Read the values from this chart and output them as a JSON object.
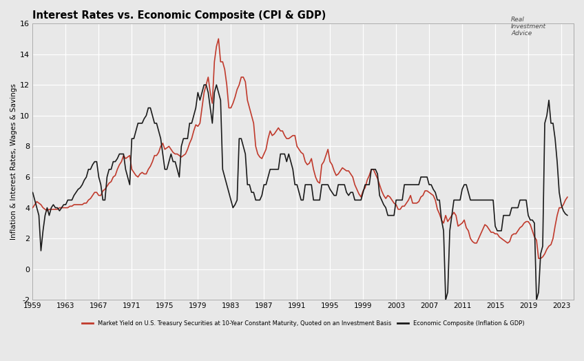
{
  "title": "Interest Rates vs. Economic Composite (CPI & GDP)",
  "ylabel": "Inflation & Interest Rates, Wages & Savings",
  "ylim": [
    -2,
    16
  ],
  "yticks": [
    -2,
    0,
    2,
    4,
    6,
    8,
    10,
    12,
    14,
    16
  ],
  "xticks": [
    1959,
    1963,
    1967,
    1971,
    1975,
    1979,
    1983,
    1987,
    1991,
    1995,
    1999,
    2003,
    2007,
    2011,
    2015,
    2019,
    2023
  ],
  "xlim": [
    1959,
    2024.5
  ],
  "treasury_color": "#c0392b",
  "composite_color": "#1a1a1a",
  "background_color": "#e8e8e8",
  "grid_color": "#ffffff",
  "legend_treasury": "Market Yield on U.S. Treasury Securities at 10-Year Constant Maturity, Quoted on an Investment Basis",
  "legend_composite": "Economic Composite (Inflation & GDP)",
  "treasury_yield": {
    "t": [
      1959.0,
      1959.25,
      1959.5,
      1959.75,
      1960.0,
      1960.25,
      1960.5,
      1960.75,
      1961.0,
      1961.25,
      1961.5,
      1961.75,
      1962.0,
      1962.25,
      1962.5,
      1962.75,
      1963.0,
      1963.25,
      1963.5,
      1963.75,
      1964.0,
      1964.25,
      1964.5,
      1964.75,
      1965.0,
      1965.25,
      1965.5,
      1965.75,
      1966.0,
      1966.25,
      1966.5,
      1966.75,
      1967.0,
      1967.25,
      1967.5,
      1967.75,
      1968.0,
      1968.25,
      1968.5,
      1968.75,
      1969.0,
      1969.25,
      1969.5,
      1969.75,
      1970.0,
      1970.25,
      1970.5,
      1970.75,
      1971.0,
      1971.25,
      1971.5,
      1971.75,
      1972.0,
      1972.25,
      1972.5,
      1972.75,
      1973.0,
      1973.25,
      1973.5,
      1973.75,
      1974.0,
      1974.25,
      1974.5,
      1974.75,
      1975.0,
      1975.25,
      1975.5,
      1975.75,
      1976.0,
      1976.25,
      1976.5,
      1976.75,
      1977.0,
      1977.25,
      1977.5,
      1977.75,
      1978.0,
      1978.25,
      1978.5,
      1978.75,
      1979.0,
      1979.25,
      1979.5,
      1979.75,
      1980.0,
      1980.25,
      1980.5,
      1980.75,
      1981.0,
      1981.25,
      1981.5,
      1981.75,
      1982.0,
      1982.25,
      1982.5,
      1982.75,
      1983.0,
      1983.25,
      1983.5,
      1983.75,
      1984.0,
      1984.25,
      1984.5,
      1984.75,
      1985.0,
      1985.25,
      1985.5,
      1985.75,
      1986.0,
      1986.25,
      1986.5,
      1986.75,
      1987.0,
      1987.25,
      1987.5,
      1987.75,
      1988.0,
      1988.25,
      1988.5,
      1988.75,
      1989.0,
      1989.25,
      1989.5,
      1989.75,
      1990.0,
      1990.25,
      1990.5,
      1990.75,
      1991.0,
      1991.25,
      1991.5,
      1991.75,
      1992.0,
      1992.25,
      1992.5,
      1992.75,
      1993.0,
      1993.25,
      1993.5,
      1993.75,
      1994.0,
      1994.25,
      1994.5,
      1994.75,
      1995.0,
      1995.25,
      1995.5,
      1995.75,
      1996.0,
      1996.25,
      1996.5,
      1996.75,
      1997.0,
      1997.25,
      1997.5,
      1997.75,
      1998.0,
      1998.25,
      1998.5,
      1998.75,
      1999.0,
      1999.25,
      1999.5,
      1999.75,
      2000.0,
      2000.25,
      2000.5,
      2000.75,
      2001.0,
      2001.25,
      2001.5,
      2001.75,
      2002.0,
      2002.25,
      2002.5,
      2002.75,
      2003.0,
      2003.25,
      2003.5,
      2003.75,
      2004.0,
      2004.25,
      2004.5,
      2004.75,
      2005.0,
      2005.25,
      2005.5,
      2005.75,
      2006.0,
      2006.25,
      2006.5,
      2006.75,
      2007.0,
      2007.25,
      2007.5,
      2007.75,
      2008.0,
      2008.25,
      2008.5,
      2008.75,
      2009.0,
      2009.25,
      2009.5,
      2009.75,
      2010.0,
      2010.25,
      2010.5,
      2010.75,
      2011.0,
      2011.25,
      2011.5,
      2011.75,
      2012.0,
      2012.25,
      2012.5,
      2012.75,
      2013.0,
      2013.25,
      2013.5,
      2013.75,
      2014.0,
      2014.25,
      2014.5,
      2014.75,
      2015.0,
      2015.25,
      2015.5,
      2015.75,
      2016.0,
      2016.25,
      2016.5,
      2016.75,
      2017.0,
      2017.25,
      2017.5,
      2017.75,
      2018.0,
      2018.25,
      2018.5,
      2018.75,
      2019.0,
      2019.25,
      2019.5,
      2019.75,
      2020.0,
      2020.25,
      2020.5,
      2020.75,
      2021.0,
      2021.25,
      2021.5,
      2021.75,
      2022.0,
      2022.25,
      2022.5,
      2022.75,
      2023.0,
      2023.25,
      2023.5,
      2023.75
    ],
    "v": [
      4.0,
      4.2,
      4.4,
      4.3,
      4.2,
      4.0,
      3.9,
      3.8,
      3.9,
      3.9,
      3.9,
      3.9,
      3.9,
      4.0,
      4.0,
      4.0,
      4.0,
      4.0,
      4.1,
      4.1,
      4.2,
      4.2,
      4.2,
      4.2,
      4.2,
      4.3,
      4.3,
      4.5,
      4.6,
      4.8,
      5.0,
      5.0,
      4.8,
      4.8,
      5.1,
      5.2,
      5.4,
      5.6,
      5.7,
      6.0,
      6.1,
      6.5,
      6.8,
      7.0,
      7.4,
      7.2,
      7.3,
      7.4,
      6.5,
      6.3,
      6.1,
      6.0,
      6.2,
      6.3,
      6.2,
      6.2,
      6.5,
      6.7,
      7.0,
      7.4,
      7.4,
      7.6,
      8.0,
      8.2,
      7.8,
      7.9,
      8.0,
      7.8,
      7.6,
      7.5,
      7.5,
      7.4,
      7.3,
      7.4,
      7.5,
      7.8,
      8.2,
      8.5,
      9.0,
      9.4,
      9.3,
      9.5,
      10.5,
      11.5,
      12.0,
      12.5,
      11.5,
      10.8,
      13.5,
      14.5,
      15.0,
      13.5,
      13.5,
      13.0,
      12.0,
      10.5,
      10.5,
      10.8,
      11.2,
      11.7,
      12.0,
      12.5,
      12.5,
      12.2,
      11.0,
      10.5,
      10.0,
      9.5,
      8.0,
      7.5,
      7.3,
      7.2,
      7.5,
      7.8,
      8.5,
      9.0,
      8.7,
      8.8,
      9.0,
      9.2,
      9.0,
      9.0,
      8.7,
      8.5,
      8.5,
      8.6,
      8.7,
      8.7,
      8.0,
      7.8,
      7.6,
      7.5,
      7.0,
      6.8,
      6.9,
      7.2,
      6.5,
      6.0,
      5.7,
      5.6,
      6.8,
      7.0,
      7.4,
      7.8,
      7.0,
      6.8,
      6.4,
      6.1,
      6.2,
      6.4,
      6.6,
      6.5,
      6.4,
      6.4,
      6.2,
      6.0,
      5.5,
      5.2,
      4.9,
      4.7,
      5.1,
      5.3,
      5.8,
      6.1,
      6.5,
      6.5,
      6.2,
      5.9,
      5.5,
      5.1,
      4.8,
      4.6,
      4.8,
      4.7,
      4.5,
      4.3,
      4.2,
      3.9,
      3.9,
      4.1,
      4.1,
      4.3,
      4.5,
      4.8,
      4.3,
      4.3,
      4.3,
      4.4,
      4.7,
      4.8,
      5.1,
      5.1,
      5.0,
      4.9,
      4.8,
      4.5,
      3.9,
      3.6,
      3.2,
      3.0,
      3.5,
      3.1,
      3.3,
      3.5,
      3.7,
      3.5,
      2.8,
      2.9,
      3.0,
      3.2,
      2.7,
      2.5,
      2.0,
      1.8,
      1.7,
      1.7,
      2.0,
      2.3,
      2.6,
      2.9,
      2.8,
      2.6,
      2.4,
      2.4,
      2.3,
      2.3,
      2.1,
      2.0,
      1.9,
      1.8,
      1.7,
      1.8,
      2.2,
      2.3,
      2.3,
      2.5,
      2.7,
      2.8,
      3.0,
      3.1,
      3.1,
      2.9,
      2.5,
      2.1,
      1.9,
      0.7,
      0.7,
      0.8,
      1.0,
      1.3,
      1.5,
      1.6,
      2.0,
      2.8,
      3.5,
      4.0,
      4.0,
      4.2,
      4.5,
      4.7
    ]
  },
  "economic_composite": {
    "t": [
      1959.0,
      1959.25,
      1959.5,
      1959.75,
      1960.0,
      1960.25,
      1960.5,
      1960.75,
      1961.0,
      1961.25,
      1961.5,
      1961.75,
      1962.0,
      1962.25,
      1962.5,
      1962.75,
      1963.0,
      1963.25,
      1963.5,
      1963.75,
      1964.0,
      1964.25,
      1964.5,
      1964.75,
      1965.0,
      1965.25,
      1965.5,
      1965.75,
      1966.0,
      1966.25,
      1966.5,
      1966.75,
      1967.0,
      1967.25,
      1967.5,
      1967.75,
      1968.0,
      1968.25,
      1968.5,
      1968.75,
      1969.0,
      1969.25,
      1969.5,
      1969.75,
      1970.0,
      1970.25,
      1970.5,
      1970.75,
      1971.0,
      1971.25,
      1971.5,
      1971.75,
      1972.0,
      1972.25,
      1972.5,
      1972.75,
      1973.0,
      1973.25,
      1973.5,
      1973.75,
      1974.0,
      1974.25,
      1974.5,
      1974.75,
      1975.0,
      1975.25,
      1975.5,
      1975.75,
      1976.0,
      1976.25,
      1976.5,
      1976.75,
      1977.0,
      1977.25,
      1977.5,
      1977.75,
      1978.0,
      1978.25,
      1978.5,
      1978.75,
      1979.0,
      1979.25,
      1979.5,
      1979.75,
      1980.0,
      1980.25,
      1980.5,
      1980.75,
      1981.0,
      1981.25,
      1981.5,
      1981.75,
      1982.0,
      1982.25,
      1982.5,
      1982.75,
      1983.0,
      1983.25,
      1983.5,
      1983.75,
      1984.0,
      1984.25,
      1984.5,
      1984.75,
      1985.0,
      1985.25,
      1985.5,
      1985.75,
      1986.0,
      1986.25,
      1986.5,
      1986.75,
      1987.0,
      1987.25,
      1987.5,
      1987.75,
      1988.0,
      1988.25,
      1988.5,
      1988.75,
      1989.0,
      1989.25,
      1989.5,
      1989.75,
      1990.0,
      1990.25,
      1990.5,
      1990.75,
      1991.0,
      1991.25,
      1991.5,
      1991.75,
      1992.0,
      1992.25,
      1992.5,
      1992.75,
      1993.0,
      1993.25,
      1993.5,
      1993.75,
      1994.0,
      1994.25,
      1994.5,
      1994.75,
      1995.0,
      1995.25,
      1995.5,
      1995.75,
      1996.0,
      1996.25,
      1996.5,
      1996.75,
      1997.0,
      1997.25,
      1997.5,
      1997.75,
      1998.0,
      1998.25,
      1998.5,
      1998.75,
      1999.0,
      1999.25,
      1999.5,
      1999.75,
      2000.0,
      2000.25,
      2000.5,
      2000.75,
      2001.0,
      2001.25,
      2001.5,
      2001.75,
      2002.0,
      2002.25,
      2002.5,
      2002.75,
      2003.0,
      2003.25,
      2003.5,
      2003.75,
      2004.0,
      2004.25,
      2004.5,
      2004.75,
      2005.0,
      2005.25,
      2005.5,
      2005.75,
      2006.0,
      2006.25,
      2006.5,
      2006.75,
      2007.0,
      2007.25,
      2007.5,
      2007.75,
      2008.0,
      2008.25,
      2008.5,
      2008.75,
      2009.0,
      2009.25,
      2009.5,
      2009.75,
      2010.0,
      2010.25,
      2010.5,
      2010.75,
      2011.0,
      2011.25,
      2011.5,
      2011.75,
      2012.0,
      2012.25,
      2012.5,
      2012.75,
      2013.0,
      2013.25,
      2013.5,
      2013.75,
      2014.0,
      2014.25,
      2014.5,
      2014.75,
      2015.0,
      2015.25,
      2015.5,
      2015.75,
      2016.0,
      2016.25,
      2016.5,
      2016.75,
      2017.0,
      2017.25,
      2017.5,
      2017.75,
      2018.0,
      2018.25,
      2018.5,
      2018.75,
      2019.0,
      2019.25,
      2019.5,
      2019.75,
      2020.0,
      2020.25,
      2020.5,
      2020.75,
      2021.0,
      2021.25,
      2021.5,
      2021.75,
      2022.0,
      2022.25,
      2022.5,
      2022.75,
      2023.0,
      2023.25,
      2023.5,
      2023.75
    ],
    "v": [
      5.0,
      4.5,
      4.0,
      3.5,
      1.2,
      2.5,
      3.5,
      4.0,
      3.5,
      4.0,
      4.2,
      4.0,
      4.0,
      3.8,
      4.0,
      4.2,
      4.2,
      4.5,
      4.5,
      4.5,
      4.8,
      5.0,
      5.2,
      5.3,
      5.5,
      5.8,
      6.0,
      6.5,
      6.5,
      6.8,
      7.0,
      7.0,
      6.0,
      5.5,
      4.5,
      4.5,
      6.0,
      6.5,
      6.5,
      7.0,
      7.0,
      7.2,
      7.5,
      7.5,
      7.5,
      6.5,
      6.0,
      5.5,
      8.5,
      8.5,
      9.0,
      9.5,
      9.5,
      9.5,
      9.8,
      10.0,
      10.5,
      10.5,
      10.0,
      9.5,
      9.5,
      9.0,
      8.5,
      7.5,
      6.5,
      6.5,
      7.0,
      7.5,
      7.0,
      7.0,
      6.5,
      6.0,
      8.0,
      8.5,
      8.5,
      8.5,
      9.5,
      9.5,
      10.0,
      10.5,
      11.5,
      11.0,
      11.5,
      12.0,
      12.0,
      11.5,
      10.5,
      9.5,
      11.5,
      12.0,
      11.5,
      11.0,
      6.5,
      6.0,
      5.5,
      5.0,
      4.5,
      4.0,
      4.2,
      4.5,
      8.5,
      8.5,
      8.0,
      7.5,
      5.5,
      5.5,
      5.0,
      5.0,
      4.5,
      4.5,
      4.5,
      4.8,
      5.5,
      5.5,
      6.0,
      6.5,
      6.5,
      6.5,
      6.5,
      6.5,
      7.5,
      7.5,
      7.5,
      7.0,
      7.5,
      7.0,
      6.5,
      5.5,
      5.5,
      5.0,
      4.5,
      4.5,
      5.5,
      5.5,
      5.5,
      5.5,
      4.5,
      4.5,
      4.5,
      4.5,
      5.5,
      5.5,
      5.5,
      5.5,
      5.2,
      5.0,
      4.8,
      4.8,
      5.5,
      5.5,
      5.5,
      5.5,
      5.0,
      4.8,
      5.0,
      5.0,
      4.5,
      4.5,
      4.5,
      4.5,
      5.0,
      5.5,
      5.5,
      5.5,
      6.5,
      6.5,
      6.5,
      6.2,
      4.8,
      4.5,
      4.2,
      4.0,
      3.5,
      3.5,
      3.5,
      3.5,
      4.5,
      4.5,
      4.5,
      4.5,
      5.5,
      5.5,
      5.5,
      5.5,
      5.5,
      5.5,
      5.5,
      5.5,
      6.0,
      6.0,
      6.0,
      6.0,
      5.5,
      5.5,
      5.2,
      5.0,
      4.5,
      4.5,
      3.2,
      2.5,
      -2.0,
      -1.5,
      2.5,
      3.5,
      4.5,
      4.5,
      4.5,
      4.5,
      5.2,
      5.5,
      5.5,
      5.0,
      4.5,
      4.5,
      4.5,
      4.5,
      4.5,
      4.5,
      4.5,
      4.5,
      4.5,
      4.5,
      4.5,
      4.5,
      2.8,
      2.5,
      2.5,
      2.5,
      3.5,
      3.5,
      3.5,
      3.5,
      4.0,
      4.0,
      4.0,
      4.0,
      4.5,
      4.5,
      4.5,
      4.5,
      3.5,
      3.2,
      3.2,
      3.0,
      -2.0,
      -1.5,
      1.0,
      1.5,
      9.5,
      10.0,
      11.0,
      9.5,
      9.5,
      8.5,
      7.0,
      5.0,
      4.2,
      3.8,
      3.6,
      3.5
    ]
  }
}
